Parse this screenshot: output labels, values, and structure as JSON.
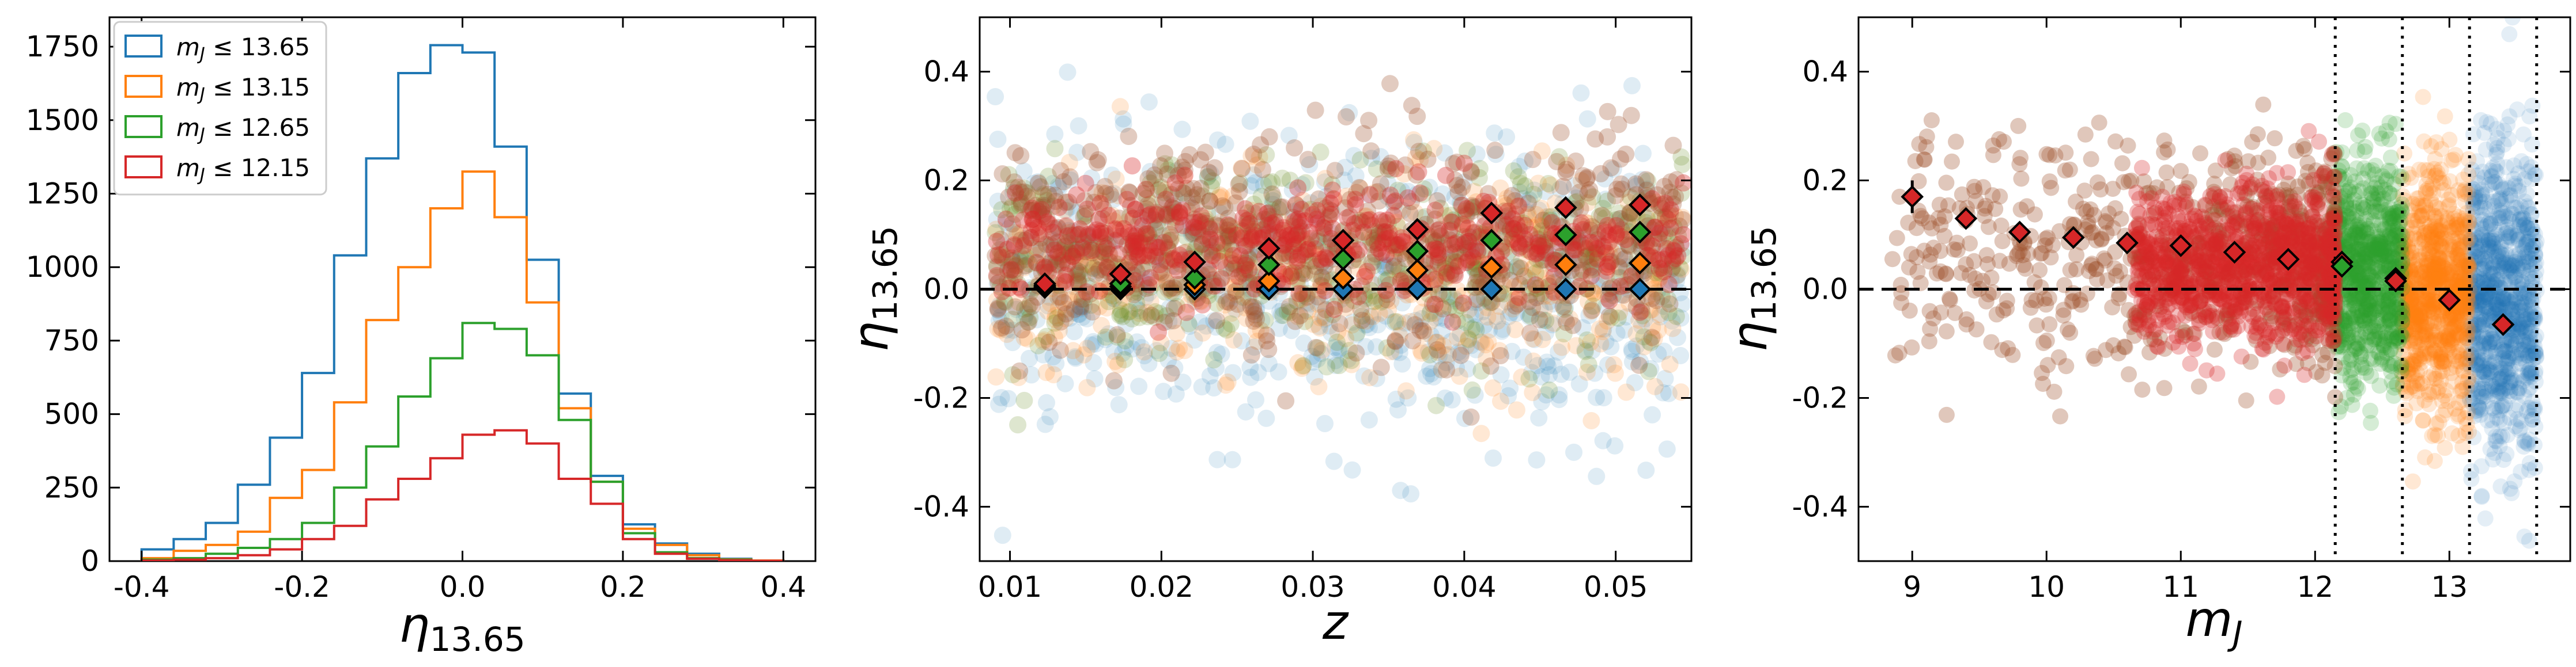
{
  "colors": {
    "blue": "#1f77b4",
    "orange": "#ff7f0e",
    "green": "#2ca02c",
    "red": "#d62728",
    "brown": "#a0522d",
    "olive": "#6b8e23"
  },
  "legend_labels": [
    "13.65",
    "13.15",
    "12.65",
    "12.15"
  ],
  "chart_data": [
    {
      "type": "histogram",
      "xlabel_sym": "η",
      "xlabel_sub": "13.65",
      "xlim": [
        -0.44,
        0.44
      ],
      "ylim": [
        0,
        1850
      ],
      "xticks": [
        "-0.4",
        "-0.2",
        "0.0",
        "0.2",
        "0.4"
      ],
      "xtick_values": [
        -0.4,
        -0.2,
        0.0,
        0.2,
        0.4
      ],
      "yticks": [
        "0",
        "250",
        "500",
        "750",
        "1000",
        "1250",
        "1500",
        "1750"
      ],
      "ytick_values": [
        0,
        250,
        500,
        750,
        1000,
        1250,
        1500,
        1750
      ],
      "legend_position": "top-left",
      "bin_edges": [
        -0.4,
        -0.36,
        -0.32,
        -0.28,
        -0.24,
        -0.2,
        -0.16,
        -0.12,
        -0.08,
        -0.04,
        0.0,
        0.04,
        0.08,
        0.12,
        0.16,
        0.2,
        0.24,
        0.28,
        0.32,
        0.36,
        0.4
      ],
      "series": [
        {
          "name": "m_J ≤ 13.65",
          "color_key": "blue",
          "values": [
            40,
            75,
            130,
            260,
            420,
            640,
            1040,
            1370,
            1660,
            1755,
            1730,
            1410,
            1025,
            570,
            290,
            125,
            60,
            25,
            8,
            2
          ]
        },
        {
          "name": "m_J ≤ 13.15",
          "color_key": "orange",
          "values": [
            10,
            35,
            55,
            100,
            215,
            310,
            540,
            820,
            1000,
            1200,
            1325,
            1170,
            880,
            520,
            270,
            110,
            55,
            20,
            6,
            2
          ]
        },
        {
          "name": "m_J ≤ 12.65",
          "color_key": "green",
          "values": [
            5,
            10,
            25,
            45,
            75,
            130,
            250,
            390,
            560,
            690,
            810,
            790,
            700,
            480,
            270,
            95,
            30,
            10,
            5,
            1
          ]
        },
        {
          "name": "m_J ≤ 12.15",
          "color_key": "red",
          "values": [
            2,
            5,
            10,
            20,
            40,
            75,
            120,
            210,
            280,
            350,
            430,
            445,
            400,
            280,
            195,
            75,
            25,
            8,
            3,
            1
          ]
        }
      ]
    },
    {
      "type": "scatter",
      "xlabel": "z",
      "ylabel_sym": "η",
      "ylabel_sub": "13.65",
      "xlim": [
        0.008,
        0.055
      ],
      "ylim": [
        -0.5,
        0.5
      ],
      "xticks": [
        "0.01",
        "0.02",
        "0.03",
        "0.04",
        "0.05"
      ],
      "xtick_values": [
        0.01,
        0.02,
        0.03,
        0.04,
        0.05
      ],
      "yticks": [
        "-0.4",
        "-0.2",
        "0.0",
        "0.2",
        "0.4"
      ],
      "ytick_values": [
        -0.4,
        -0.2,
        0.0,
        0.2,
        0.4
      ],
      "hline": 0.0,
      "binned_means": {
        "x": [
          0.0123,
          0.0173,
          0.0222,
          0.0271,
          0.032,
          0.0369,
          0.0418,
          0.0467,
          0.0516
        ],
        "series": [
          {
            "name": "m_J ≤ 13.65",
            "color_key": "blue",
            "y": [
              0.003,
              0.0,
              0.0,
              0.0,
              0.0,
              0.0,
              0.0,
              0.0,
              0.0
            ]
          },
          {
            "name": "m_J ≤ 13.15",
            "color_key": "orange",
            "y": [
              0.005,
              0.005,
              0.008,
              0.015,
              0.02,
              0.035,
              0.04,
              0.045,
              0.048
            ]
          },
          {
            "name": "m_J ≤ 12.65",
            "color_key": "green",
            "y": [
              0.007,
              0.01,
              0.02,
              0.045,
              0.055,
              0.07,
              0.09,
              0.1,
              0.105
            ]
          },
          {
            "name": "m_J ≤ 12.15",
            "color_key": "red",
            "y": [
              0.01,
              0.028,
              0.05,
              0.075,
              0.09,
              0.11,
              0.14,
              0.15,
              0.155
            ]
          }
        ]
      }
    },
    {
      "type": "scatter",
      "xlabel_sym": "m",
      "xlabel_sub": "J",
      "ylabel_sym": "η",
      "ylabel_sub": "13.65",
      "xlim": [
        8.6,
        13.9
      ],
      "ylim": [
        -0.5,
        0.5
      ],
      "xticks": [
        "9",
        "10",
        "11",
        "12",
        "13"
      ],
      "xtick_values": [
        9,
        10,
        11,
        12,
        13
      ],
      "yticks": [
        "-0.4",
        "-0.2",
        "0.0",
        "0.2",
        "0.4"
      ],
      "ytick_values": [
        -0.4,
        -0.2,
        0.0,
        0.2,
        0.4
      ],
      "hline": 0.0,
      "vlines": [
        12.15,
        12.65,
        13.15,
        13.65
      ],
      "binned_means": [
        {
          "x": 9.0,
          "y": 0.17,
          "err": 0.03,
          "color_key": "red"
        },
        {
          "x": 9.4,
          "y": 0.13,
          "err": 0.015,
          "color_key": "red"
        },
        {
          "x": 9.8,
          "y": 0.105,
          "err": 0.01,
          "color_key": "red"
        },
        {
          "x": 10.2,
          "y": 0.095,
          "err": 0.008,
          "color_key": "red"
        },
        {
          "x": 10.6,
          "y": 0.085,
          "err": 0.006,
          "color_key": "red"
        },
        {
          "x": 11.0,
          "y": 0.08,
          "err": 0.005,
          "color_key": "red"
        },
        {
          "x": 11.4,
          "y": 0.068,
          "err": 0.004,
          "color_key": "red"
        },
        {
          "x": 11.8,
          "y": 0.055,
          "err": 0.004,
          "color_key": "red"
        },
        {
          "x": 12.2,
          "y": 0.05,
          "err": 0.004,
          "color_key": "red"
        },
        {
          "x": 12.2,
          "y": 0.042,
          "err": 0.004,
          "color_key": "green"
        },
        {
          "x": 12.6,
          "y": 0.02,
          "err": 0.004,
          "color_key": "green"
        },
        {
          "x": 12.6,
          "y": 0.015,
          "err": 0.004,
          "color_key": "red"
        },
        {
          "x": 13.0,
          "y": -0.02,
          "err": 0.004,
          "color_key": "orange"
        },
        {
          "x": 13.0,
          "y": -0.02,
          "err": 0.004,
          "color_key": "red"
        },
        {
          "x": 13.4,
          "y": -0.065,
          "err": 0.004,
          "color_key": "blue"
        },
        {
          "x": 13.4,
          "y": -0.065,
          "err": 0.004,
          "color_key": "red"
        }
      ]
    }
  ]
}
